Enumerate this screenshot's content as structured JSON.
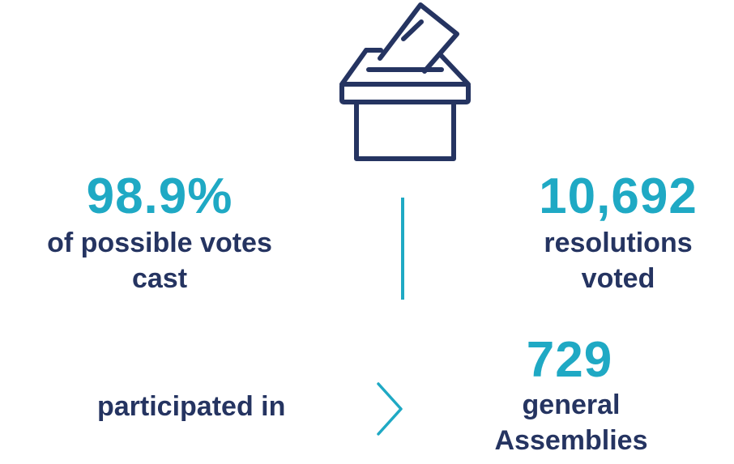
{
  "colors": {
    "navy": "#253461",
    "teal": "#1fa9c4"
  },
  "icon": {
    "name": "ballot-box-icon"
  },
  "stats": {
    "votes": {
      "value": "98.9%",
      "label_line1": "of possible votes",
      "label_line2": "cast"
    },
    "resolutions": {
      "value": "10,692",
      "label_line1": "resolutions",
      "label_line2": "voted"
    },
    "assemblies": {
      "value": "729",
      "label_line1": "general",
      "label_line2": "Assemblies"
    }
  },
  "participated": {
    "text": "participated in"
  }
}
